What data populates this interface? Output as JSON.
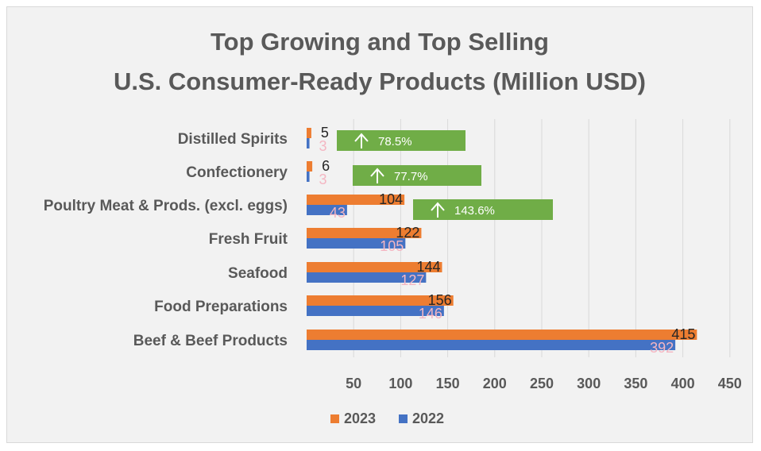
{
  "chart_data": {
    "type": "bar",
    "orientation": "horizontal",
    "title": [
      "Top Growing and Top Selling",
      "U.S. Consumer-Ready Products (Million USD)"
    ],
    "categories": [
      "Distilled Spirits",
      "Confectionery",
      "Poultry Meat & Prods. (excl. eggs)",
      "Fresh Fruit",
      "Seafood",
      "Food Preparations",
      "Beef & Beef Products"
    ],
    "series": [
      {
        "name": "2023",
        "color": "#ed7d31",
        "values": [
          5,
          6,
          104,
          122,
          144,
          156,
          415
        ]
      },
      {
        "name": "2022",
        "color": "#4472c4",
        "values": [
          3,
          3,
          43,
          105,
          127,
          146,
          392
        ]
      }
    ],
    "xticks": [
      50,
      100,
      150,
      200,
      250,
      300,
      350,
      400,
      450
    ],
    "xlim": [
      0,
      450
    ],
    "grid": true,
    "legend_position": "bottom",
    "annotations": [
      {
        "category": "Distilled Spirits",
        "arrow": "↑",
        "text": "78.5%",
        "color": "#70ad47"
      },
      {
        "category": "Confectionery",
        "arrow": "↑",
        "text": "77.7%",
        "color": "#70ad47"
      },
      {
        "category": "Poultry Meat & Prods. (excl. eggs)",
        "arrow": "↑",
        "text": "143.6%",
        "color": "#70ad47"
      }
    ]
  }
}
